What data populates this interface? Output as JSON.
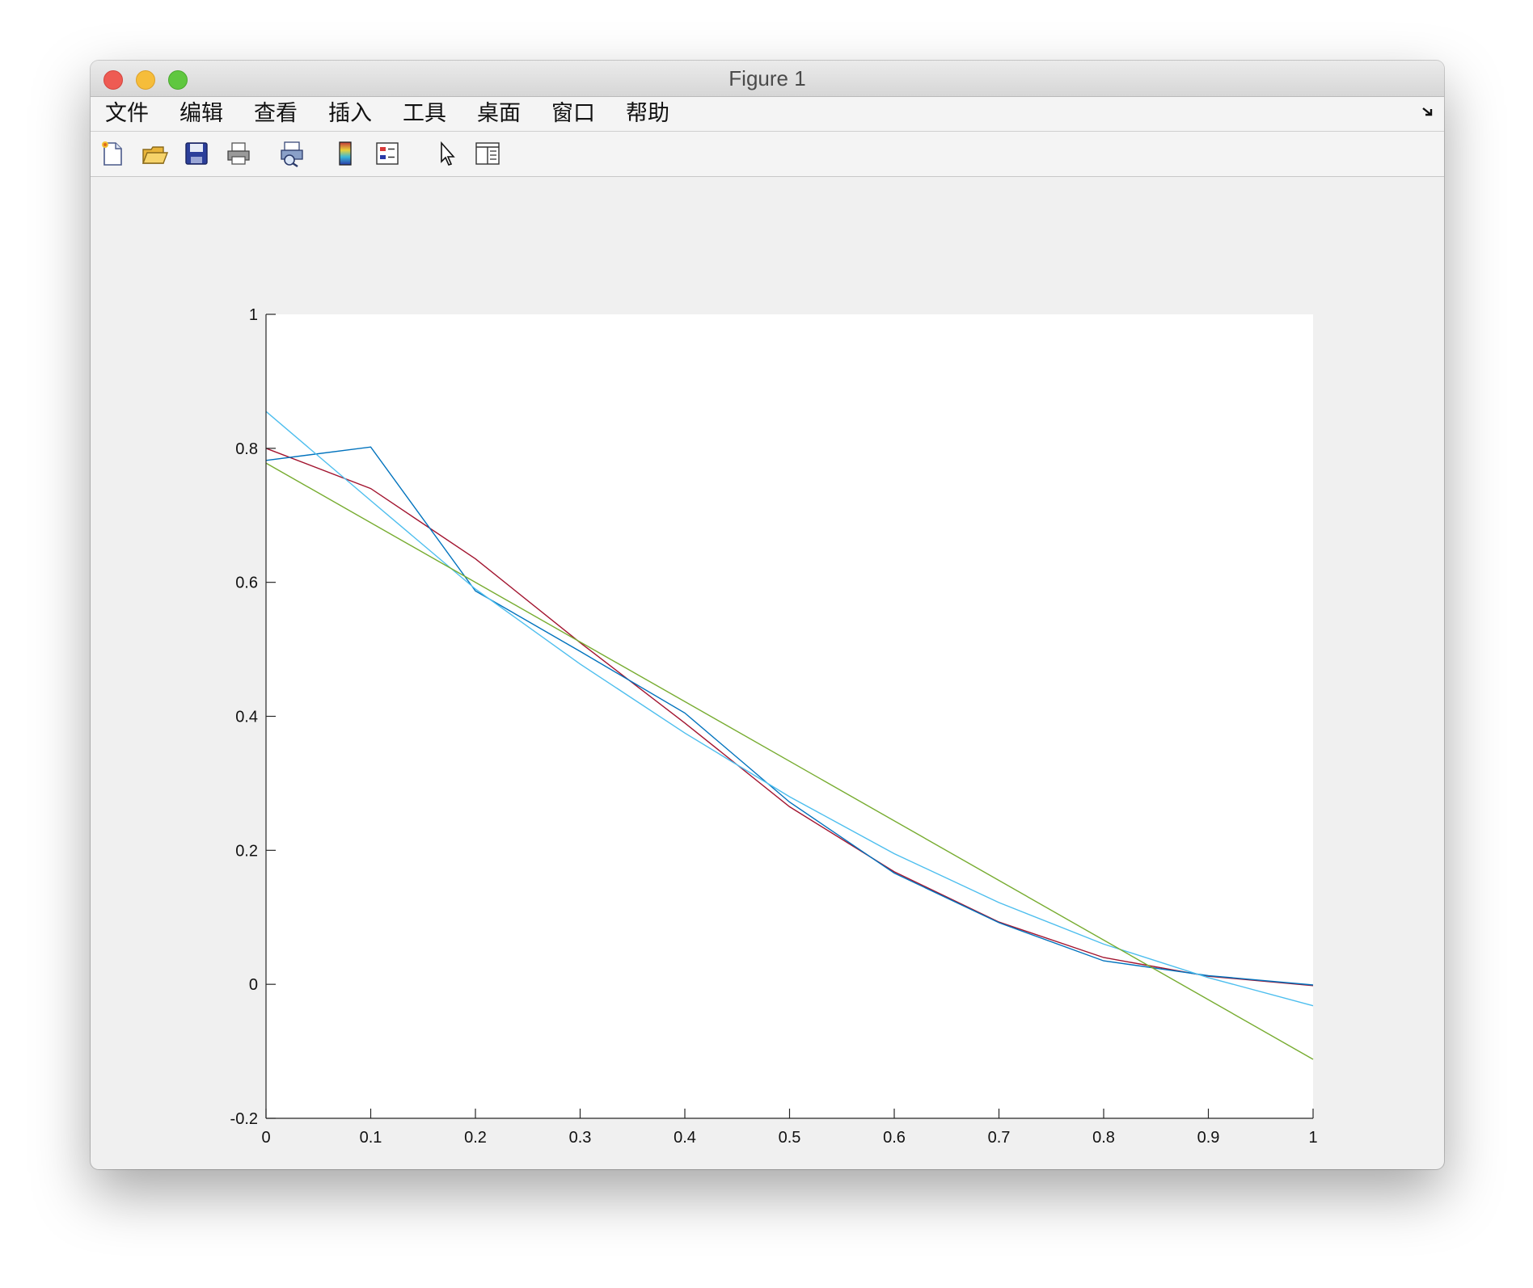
{
  "window": {
    "title": "Figure 1"
  },
  "menubar": {
    "items": [
      "文件",
      "编辑",
      "查看",
      "插入",
      "工具",
      "桌面",
      "窗口",
      "帮助"
    ]
  },
  "toolbar": {
    "icons": [
      "new-figure-icon",
      "open-file-icon",
      "save-icon",
      "print-icon",
      "print-preview-icon",
      "colorbar-icon",
      "legend-icon",
      "pointer-icon",
      "property-inspector-icon"
    ]
  },
  "chart_data": {
    "type": "line",
    "title": "",
    "xlabel": "",
    "ylabel": "",
    "xlim": [
      0,
      1
    ],
    "ylim": [
      -0.2,
      1
    ],
    "x_ticks": [
      "0",
      "0.1",
      "0.2",
      "0.3",
      "0.4",
      "0.5",
      "0.6",
      "0.7",
      "0.8",
      "0.9",
      "1"
    ],
    "y_ticks": [
      "-0.2",
      "0",
      "0.2",
      "0.4",
      "0.6",
      "0.8",
      "1"
    ],
    "grid": false,
    "series": [
      {
        "color": "#a2142f",
        "x": [
          0,
          0.1,
          0.2,
          0.3,
          0.4,
          0.5,
          0.6,
          0.7,
          0.8,
          0.9,
          1
        ],
        "y": [
          0.8,
          0.74,
          0.635,
          0.51,
          0.39,
          0.265,
          0.168,
          0.093,
          0.04,
          0.012,
          -0.002
        ]
      },
      {
        "color": "#0072bd",
        "x": [
          0,
          0.1,
          0.2,
          0.3,
          0.4,
          0.5,
          0.6,
          0.7,
          0.8,
          0.9,
          1
        ],
        "y": [
          0.782,
          0.802,
          0.587,
          0.497,
          0.405,
          0.272,
          0.166,
          0.092,
          0.035,
          0.013,
          -0.001
        ]
      },
      {
        "color": "#4dbeee",
        "x": [
          0,
          0.1,
          0.2,
          0.3,
          0.4,
          0.5,
          0.6,
          0.7,
          0.8,
          0.9,
          1
        ],
        "y": [
          0.855,
          0.722,
          0.59,
          0.478,
          0.375,
          0.28,
          0.195,
          0.122,
          0.06,
          0.01,
          -0.032
        ]
      },
      {
        "color": "#77ac30",
        "x": [
          0,
          1
        ],
        "y": [
          0.778,
          -0.112
        ]
      }
    ]
  }
}
